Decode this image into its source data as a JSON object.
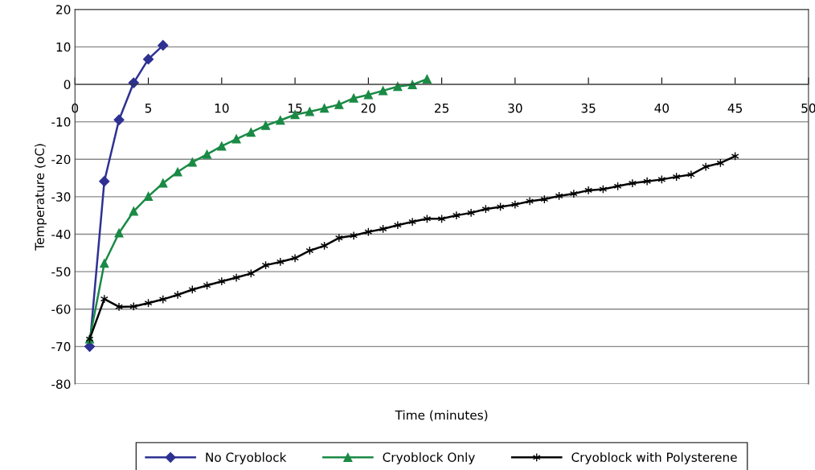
{
  "chart_data": {
    "type": "line",
    "xlabel": "Time (minutes)",
    "ylabel": "Temperature (oC)",
    "xlim": [
      0,
      50
    ],
    "xticks": [
      0,
      5,
      10,
      15,
      20,
      25,
      30,
      35,
      40,
      45,
      50
    ],
    "ylim": [
      -80,
      20
    ],
    "yticks": [
      -80,
      -70,
      -60,
      -50,
      -40,
      -30,
      -20,
      -10,
      0,
      10,
      20
    ],
    "grid": "y",
    "legend": "bottom",
    "series": [
      {
        "name": "No Cryoblock",
        "color": "#2e3192",
        "marker": "diamond",
        "x": [
          1,
          2,
          3,
          4,
          5,
          6
        ],
        "values": [
          -70,
          -25.9,
          -9.5,
          0.4,
          6.7,
          10.4
        ]
      },
      {
        "name": "Cryoblock Only",
        "color": "#1a8a45",
        "marker": "triangle",
        "x": [
          1,
          2,
          3,
          4,
          5,
          6,
          7,
          8,
          9,
          10,
          11,
          12,
          13,
          14,
          15,
          16,
          17,
          18,
          19,
          20,
          21,
          22,
          23,
          24
        ],
        "values": [
          -68,
          -47.8,
          -39.7,
          -33.9,
          -29.9,
          -26.4,
          -23.4,
          -20.8,
          -18.7,
          -16.5,
          -14.6,
          -12.8,
          -11,
          -9.6,
          -8.1,
          -7.3,
          -6.4,
          -5.4,
          -3.7,
          -2.8,
          -1.7,
          -0.6,
          -0.1,
          1.4
        ]
      },
      {
        "name": "Cryoblock with Polysterene",
        "color": "#000000",
        "marker": "cross",
        "x": [
          1,
          2,
          3,
          4,
          5,
          6,
          7,
          8,
          9,
          10,
          11,
          12,
          13,
          14,
          15,
          16,
          17,
          18,
          19,
          20,
          21,
          22,
          23,
          24,
          25,
          26,
          27,
          28,
          29,
          30,
          31,
          32,
          33,
          34,
          35,
          36,
          37,
          38,
          39,
          40,
          41,
          42,
          43,
          44,
          45
        ],
        "values": [
          -68,
          -57.3,
          -59.4,
          -59.3,
          -58.4,
          -57.4,
          -56.2,
          -54.8,
          -53.7,
          -52.6,
          -51.6,
          -50.5,
          -48.3,
          -47.4,
          -46.4,
          -44.4,
          -43.1,
          -41,
          -40.4,
          -39.4,
          -38.6,
          -37.6,
          -36.7,
          -35.9,
          -35.9,
          -35,
          -34.3,
          -33.3,
          -32.7,
          -32.1,
          -31.2,
          -30.7,
          -29.8,
          -29.2,
          -28.3,
          -28,
          -27.2,
          -26.4,
          -25.9,
          -25.4,
          -24.7,
          -24.1,
          -22,
          -21,
          -19.2
        ]
      }
    ]
  }
}
